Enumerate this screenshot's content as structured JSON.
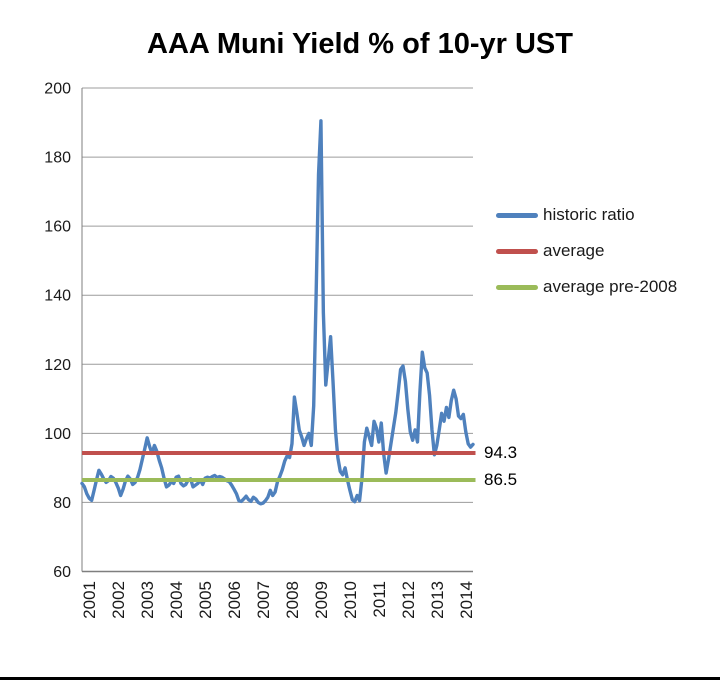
{
  "title": "AAA Muni Yield % of 10-yr UST",
  "colors": {
    "historic": "#4F81BD",
    "average": "#C0504D",
    "pre2008": "#9BBB59",
    "gridline": "#9C9C9C",
    "axis": "#7F7F7F",
    "footer_line": "#000000"
  },
  "legend": [
    {
      "label": "historic ratio",
      "color": "#4F81BD"
    },
    {
      "label": "average",
      "color": "#C0504D"
    },
    {
      "label": "average pre-2008",
      "color": "#9BBB59"
    }
  ],
  "annotations": [
    {
      "text": "94.3",
      "value": 94.3
    },
    {
      "text": "86.5",
      "value": 86.5
    }
  ],
  "chart_data": {
    "type": "line",
    "title": "AAA Muni Yield % of 10-yr UST",
    "xlabel": "",
    "ylabel": "",
    "ylim": [
      60,
      200
    ],
    "yticks": [
      60,
      80,
      100,
      120,
      140,
      160,
      180,
      200
    ],
    "xticks_years": [
      2001,
      2002,
      2003,
      2004,
      2005,
      2006,
      2007,
      2008,
      2009,
      2010,
      2011,
      2012,
      2013,
      2014
    ],
    "x_range": [
      2000.75,
      2014.25
    ],
    "grid": true,
    "legend_position": "right",
    "series": [
      {
        "name": "historic ratio",
        "color": "#4F81BD",
        "x_start": 2000.75,
        "x_step": 0.0833333,
        "values": [
          85.5,
          84.5,
          82.5,
          81.2,
          80.6,
          83.5,
          86.5,
          89.3,
          88.2,
          86.8,
          85.8,
          86.3,
          87.5,
          87.0,
          85.8,
          84.2,
          82.0,
          83.8,
          86.2,
          87.6,
          86.8,
          85.2,
          85.8,
          87.2,
          89.5,
          92.5,
          95.5,
          98.7,
          96.2,
          94.2,
          96.5,
          94.8,
          92.2,
          90.0,
          87.0,
          84.5,
          85.0,
          86.0,
          85.5,
          87.3,
          87.6,
          85.5,
          84.8,
          85.2,
          86.5,
          86.8,
          84.5,
          85.0,
          85.5,
          86.5,
          85.2,
          87.0,
          87.3,
          87.0,
          87.5,
          87.8,
          87.2,
          87.5,
          87.3,
          86.8,
          86.3,
          86.0,
          85.0,
          83.8,
          82.5,
          80.5,
          80.3,
          81.0,
          81.8,
          80.8,
          80.3,
          81.5,
          81.0,
          80.0,
          79.6,
          79.8,
          80.5,
          81.5,
          83.5,
          82.0,
          83.0,
          86.0,
          87.6,
          89.5,
          92.0,
          93.5,
          93.0,
          97.0,
          110.5,
          106.0,
          101.0,
          99.0,
          96.5,
          98.5,
          100.0,
          96.5,
          108.0,
          140.0,
          175.0,
          190.5,
          135.0,
          114.0,
          121.0,
          128.0,
          115.0,
          101.0,
          93.0,
          89.0,
          88.0,
          90.0,
          86.5,
          83.5,
          80.8,
          80.2,
          82.0,
          80.5,
          87.0,
          97.5,
          101.5,
          99.0,
          96.5,
          103.5,
          101.5,
          97.5,
          103.0,
          94.0,
          88.5,
          92.5,
          97.0,
          101.5,
          106.0,
          112.0,
          118.5,
          119.5,
          115.0,
          107.0,
          100.5,
          98.0,
          101.0,
          97.5,
          112.0,
          123.5,
          119.0,
          117.5,
          111.0,
          101.0,
          93.8,
          96.5,
          101.0,
          105.8,
          103.5,
          107.5,
          104.6,
          109.5,
          112.5,
          110.0,
          105.0,
          104.3,
          105.5,
          100.5,
          97.0,
          96.0,
          96.8
        ]
      },
      {
        "name": "average",
        "color": "#C0504D",
        "constant": 94.3
      },
      {
        "name": "average pre-2008",
        "color": "#9BBB59",
        "constant": 86.5
      }
    ]
  }
}
